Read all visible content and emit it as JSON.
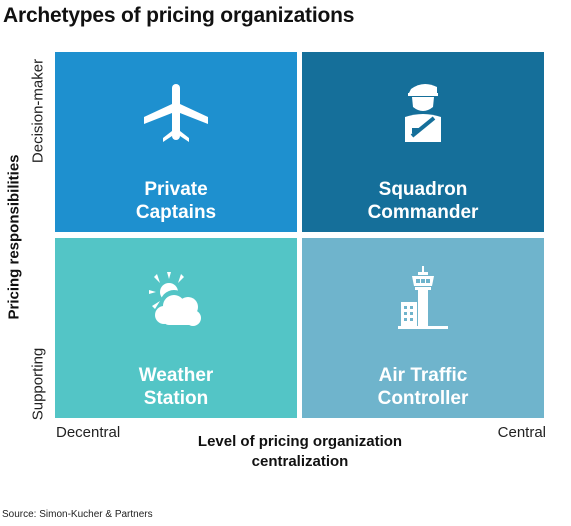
{
  "title": "Archetypes of pricing organizations",
  "y_axis": {
    "title": "Pricing responsibilities",
    "top_label": "Decision-maker",
    "bottom_label": "Supporting"
  },
  "x_axis": {
    "title_line1": "Level of pricing organization",
    "title_line2": "centralization",
    "left_label": "Decentral",
    "right_label": "Central"
  },
  "quadrants": [
    {
      "line1": "Private",
      "line2": "Captains",
      "icon": "airplane-icon",
      "color": "#1e90cf"
    },
    {
      "line1": "Squadron",
      "line2": "Commander",
      "icon": "pilot-icon",
      "color": "#156f9a"
    },
    {
      "line1": "Weather",
      "line2": "Station",
      "icon": "sun-cloud-icon",
      "color": "#53c5c6"
    },
    {
      "line1": "Air Traffic",
      "line2": "Controller",
      "icon": "control-tower-icon",
      "color": "#6fb4cc"
    }
  ],
  "source": "Source: Simon-Kucher & Partners"
}
